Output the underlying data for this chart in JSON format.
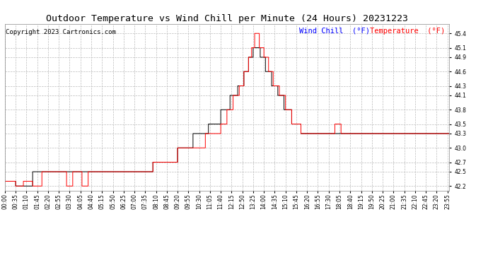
{
  "title": "Outdoor Temperature vs Wind Chill per Minute (24 Hours) 20231223",
  "copyright": "Copyright 2023 Cartronics.com",
  "legend_wind_chill": "Wind Chill  (°F)",
  "legend_temp": "Temperature  (°F)",
  "wind_chill_color": "#000000",
  "temp_color": "#FF0000",
  "background_color": "#FFFFFF",
  "grid_color": "#BBBBBB",
  "title_color": "#000000",
  "ylim": [
    42.1,
    45.6
  ],
  "yticks": [
    42.2,
    42.5,
    42.7,
    43.0,
    43.3,
    43.5,
    43.8,
    44.1,
    44.3,
    44.6,
    44.9,
    45.1,
    45.4
  ],
  "title_fontsize": 9.5,
  "tick_fontsize": 5.5,
  "legend_fontsize": 7.5,
  "copyright_fontsize": 6.5
}
